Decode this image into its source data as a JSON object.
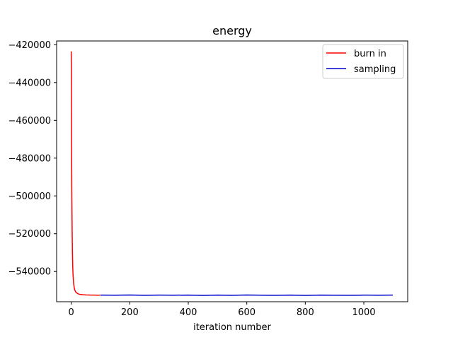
{
  "chart_data": {
    "type": "line",
    "title": "energy",
    "xlabel": "iteration number",
    "ylabel": "",
    "xlim": [
      -50,
      1150
    ],
    "ylim": [
      -556000,
      -418000
    ],
    "x_ticks": [
      0,
      200,
      400,
      600,
      800,
      1000
    ],
    "y_ticks": [
      -420000,
      -440000,
      -460000,
      -480000,
      -500000,
      -520000,
      -540000
    ],
    "x_tick_labels": [
      "0",
      "200",
      "400",
      "600",
      "800",
      "1000"
    ],
    "y_tick_labels": [
      "−420000",
      "−440000",
      "−460000",
      "−480000",
      "−500000",
      "−520000",
      "−540000"
    ],
    "grid": false,
    "legend_position": "top-right",
    "series": [
      {
        "name": "burn in",
        "color": "#ff0000",
        "x": [
          0,
          1,
          2,
          3,
          4,
          5,
          6,
          8,
          10,
          12,
          15,
          20,
          25,
          30,
          40,
          50,
          60,
          70,
          80,
          90,
          99
        ],
        "y": [
          -423500,
          -470000,
          -500000,
          -518000,
          -530000,
          -537000,
          -541500,
          -546000,
          -548500,
          -549800,
          -550800,
          -551500,
          -551900,
          -552100,
          -552300,
          -552400,
          -552450,
          -552500,
          -552500,
          -552520,
          -552540
        ]
      },
      {
        "name": "sampling",
        "color": "#0000cc",
        "x": [
          100,
          150,
          200,
          250,
          300,
          350,
          400,
          450,
          500,
          550,
          600,
          650,
          700,
          750,
          800,
          850,
          900,
          950,
          1000,
          1050,
          1099
        ],
        "y": [
          -552500,
          -552550,
          -552450,
          -552600,
          -552500,
          -552550,
          -552480,
          -552620,
          -552500,
          -552580,
          -552450,
          -552550,
          -552600,
          -552500,
          -552650,
          -552480,
          -552550,
          -552600,
          -552500,
          -552550,
          -552500
        ]
      }
    ]
  }
}
